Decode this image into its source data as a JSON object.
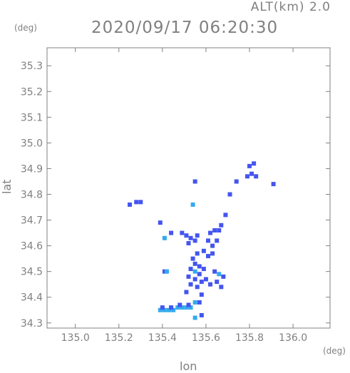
{
  "header": {
    "altitude_label": "ALT(km) 2.0",
    "timestamp": "2020/09/17 06:20:30"
  },
  "chart_data": {
    "type": "heatmap",
    "xlabel": "lon",
    "ylabel": "lat",
    "x_unit": "(deg)",
    "y_unit": "(deg)",
    "xlim": [
      134.87,
      136.17
    ],
    "ylim": [
      34.28,
      35.37
    ],
    "x_ticks": [
      135.0,
      135.2,
      135.4,
      135.6,
      135.8,
      136.0
    ],
    "y_ticks": [
      34.3,
      34.4,
      34.5,
      34.6,
      34.7,
      34.8,
      34.9,
      35.0,
      35.1,
      35.2,
      35.3
    ],
    "x_tick_labels": [
      "135.0",
      "135.2",
      "135.4",
      "135.6",
      "135.8",
      "136.0"
    ],
    "y_tick_labels": [
      "34.3",
      "34.4",
      "34.5",
      "34.6",
      "34.7",
      "34.8",
      "34.9",
      "35.0",
      "35.1",
      "35.2",
      "35.3"
    ],
    "grid": false,
    "colors": {
      "axis": "#808080",
      "echo_main": "#4455ee",
      "echo_light": "#33aaee"
    },
    "echo_cells": [
      {
        "lon": 135.25,
        "lat": 34.76,
        "color": "#4455ee"
      },
      {
        "lon": 135.28,
        "lat": 34.77,
        "color": "#4455ee"
      },
      {
        "lon": 135.3,
        "lat": 34.77,
        "color": "#4455ee"
      },
      {
        "lon": 135.39,
        "lat": 34.69,
        "color": "#4455ee"
      },
      {
        "lon": 135.54,
        "lat": 34.76,
        "color": "#33aaee"
      },
      {
        "lon": 135.55,
        "lat": 34.85,
        "color": "#4455ee"
      },
      {
        "lon": 135.8,
        "lat": 34.91,
        "color": "#4455ee"
      },
      {
        "lon": 135.82,
        "lat": 34.92,
        "color": "#4455ee"
      },
      {
        "lon": 135.81,
        "lat": 34.88,
        "color": "#4455ee"
      },
      {
        "lon": 135.79,
        "lat": 34.87,
        "color": "#4455ee"
      },
      {
        "lon": 135.83,
        "lat": 34.87,
        "color": "#4455ee"
      },
      {
        "lon": 135.74,
        "lat": 34.85,
        "color": "#4455ee"
      },
      {
        "lon": 135.91,
        "lat": 34.84,
        "color": "#4455ee"
      },
      {
        "lon": 135.71,
        "lat": 34.8,
        "color": "#4455ee"
      },
      {
        "lon": 135.69,
        "lat": 34.72,
        "color": "#4455ee"
      },
      {
        "lon": 135.67,
        "lat": 34.68,
        "color": "#4455ee"
      },
      {
        "lon": 135.66,
        "lat": 34.66,
        "color": "#4455ee"
      },
      {
        "lon": 135.64,
        "lat": 34.66,
        "color": "#4455ee"
      },
      {
        "lon": 135.62,
        "lat": 34.65,
        "color": "#4455ee"
      },
      {
        "lon": 135.65,
        "lat": 34.62,
        "color": "#4455ee"
      },
      {
        "lon": 135.63,
        "lat": 34.6,
        "color": "#4455ee"
      },
      {
        "lon": 135.61,
        "lat": 34.62,
        "color": "#4455ee"
      },
      {
        "lon": 135.59,
        "lat": 34.58,
        "color": "#4455ee"
      },
      {
        "lon": 135.61,
        "lat": 34.56,
        "color": "#4455ee"
      },
      {
        "lon": 135.63,
        "lat": 34.57,
        "color": "#4455ee"
      },
      {
        "lon": 135.49,
        "lat": 34.65,
        "color": "#4455ee"
      },
      {
        "lon": 135.51,
        "lat": 34.64,
        "color": "#4455ee"
      },
      {
        "lon": 135.53,
        "lat": 34.63,
        "color": "#4455ee"
      },
      {
        "lon": 135.55,
        "lat": 34.62,
        "color": "#4455ee"
      },
      {
        "lon": 135.52,
        "lat": 34.61,
        "color": "#4455ee"
      },
      {
        "lon": 135.56,
        "lat": 34.64,
        "color": "#4455ee"
      },
      {
        "lon": 135.41,
        "lat": 34.63,
        "color": "#33aaee"
      },
      {
        "lon": 135.44,
        "lat": 34.65,
        "color": "#4455ee"
      },
      {
        "lon": 135.56,
        "lat": 34.57,
        "color": "#4455ee"
      },
      {
        "lon": 135.54,
        "lat": 34.55,
        "color": "#4455ee"
      },
      {
        "lon": 135.55,
        "lat": 34.53,
        "color": "#4455ee"
      },
      {
        "lon": 135.57,
        "lat": 34.52,
        "color": "#4455ee"
      },
      {
        "lon": 135.53,
        "lat": 34.51,
        "color": "#4455ee"
      },
      {
        "lon": 135.55,
        "lat": 34.5,
        "color": "#33aaee"
      },
      {
        "lon": 135.57,
        "lat": 34.49,
        "color": "#4455ee"
      },
      {
        "lon": 135.59,
        "lat": 34.51,
        "color": "#4455ee"
      },
      {
        "lon": 135.52,
        "lat": 34.48,
        "color": "#4455ee"
      },
      {
        "lon": 135.55,
        "lat": 34.47,
        "color": "#4455ee"
      },
      {
        "lon": 135.58,
        "lat": 34.46,
        "color": "#4455ee"
      },
      {
        "lon": 135.53,
        "lat": 34.45,
        "color": "#4455ee"
      },
      {
        "lon": 135.56,
        "lat": 34.44,
        "color": "#4455ee"
      },
      {
        "lon": 135.6,
        "lat": 34.47,
        "color": "#4455ee"
      },
      {
        "lon": 135.62,
        "lat": 34.45,
        "color": "#4455ee"
      },
      {
        "lon": 135.64,
        "lat": 34.5,
        "color": "#4455ee"
      },
      {
        "lon": 135.66,
        "lat": 34.49,
        "color": "#33aaee"
      },
      {
        "lon": 135.68,
        "lat": 34.48,
        "color": "#4455ee"
      },
      {
        "lon": 135.65,
        "lat": 34.46,
        "color": "#4455ee"
      },
      {
        "lon": 135.67,
        "lat": 34.44,
        "color": "#4455ee"
      },
      {
        "lon": 135.41,
        "lat": 34.5,
        "color": "#4455ee"
      },
      {
        "lon": 135.42,
        "lat": 34.5,
        "color": "#33aaee"
      },
      {
        "lon": 135.51,
        "lat": 34.42,
        "color": "#4455ee"
      },
      {
        "lon": 135.58,
        "lat": 34.41,
        "color": "#4455ee"
      },
      {
        "lon": 135.57,
        "lat": 34.38,
        "color": "#4455ee"
      },
      {
        "lon": 135.55,
        "lat": 34.38,
        "color": "#33aaee"
      },
      {
        "lon": 135.58,
        "lat": 34.33,
        "color": "#4455ee"
      },
      {
        "lon": 135.55,
        "lat": 34.32,
        "color": "#33aaee"
      },
      {
        "lon": 135.39,
        "lat": 34.35,
        "color": "#33aaee"
      },
      {
        "lon": 135.41,
        "lat": 34.35,
        "color": "#33aaee"
      },
      {
        "lon": 135.43,
        "lat": 34.35,
        "color": "#33aaee"
      },
      {
        "lon": 135.45,
        "lat": 34.35,
        "color": "#33aaee"
      },
      {
        "lon": 135.47,
        "lat": 34.36,
        "color": "#33aaee"
      },
      {
        "lon": 135.49,
        "lat": 34.36,
        "color": "#33aaee"
      },
      {
        "lon": 135.51,
        "lat": 34.36,
        "color": "#33aaee"
      },
      {
        "lon": 135.53,
        "lat": 34.36,
        "color": "#33aaee"
      },
      {
        "lon": 135.4,
        "lat": 34.36,
        "color": "#4455ee"
      },
      {
        "lon": 135.44,
        "lat": 34.36,
        "color": "#4455ee"
      },
      {
        "lon": 135.48,
        "lat": 34.37,
        "color": "#4455ee"
      },
      {
        "lon": 135.52,
        "lat": 34.37,
        "color": "#4455ee"
      }
    ]
  }
}
